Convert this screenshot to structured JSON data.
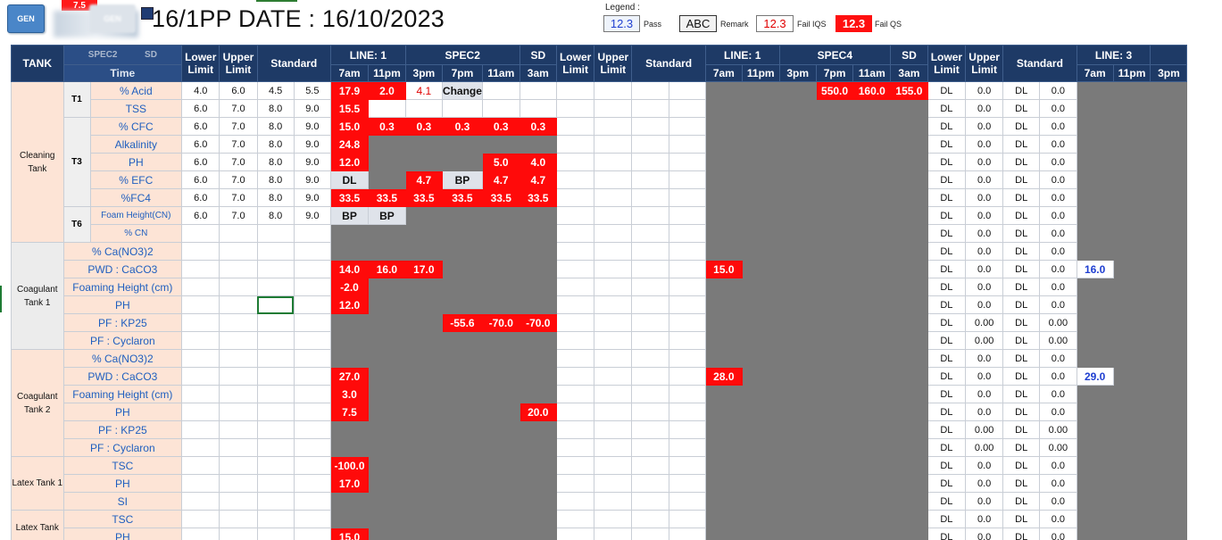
{
  "header": {
    "gen_button": "GEN",
    "gen_button_2": "GEN",
    "red_chip": "7.5",
    "title": "16/1PP DATE : 16/10/2023"
  },
  "legend": {
    "label": "Legend :",
    "pass_value": "12.3",
    "pass_text": "Pass",
    "remark_value": "ABC",
    "remark_text": "Remark",
    "failiqs_value": "12.3",
    "failiqs_text": "Fail IQS",
    "failqs_value": "12.3",
    "failqs_text": "Fail QS"
  },
  "colors": {
    "header_bg": "#1e3a66",
    "fail_qs": "#ff0a0a",
    "fail_iqs_text": "#e00000",
    "pass_text": "#1f3fd1",
    "tank_bg": "#fde4d6",
    "unused_cell": "#7a7a7a"
  },
  "table_header": {
    "tank": "TANK",
    "spec_blur": "SPEC2",
    "sd_blur": "SD",
    "time": "Time",
    "lower_limit": "Lower\nLimit",
    "upper_limit": "Upper\nLimit",
    "standard": "Standard",
    "group1": {
      "line": "LINE: 1",
      "spec": "SPEC2",
      "sd": "SD",
      "times": [
        "7am",
        "11pm",
        "3pm",
        "7pm",
        "11am",
        "3am"
      ]
    },
    "lower_limit_2": "Lower\nLimit",
    "upper_limit_2": "Upper\nLimit",
    "standard_2": "Standard",
    "group2": {
      "line": "LINE: 1",
      "spec": "SPEC4",
      "sd": "SD",
      "times": [
        "7am",
        "11pm",
        "3pm",
        "7pm",
        "11am",
        "3am"
      ]
    },
    "lower_limit_3": "Lower\nLimit",
    "upper_limit_3": "Upper\nLimit",
    "standard_3": "Standard",
    "group3": {
      "line": "LINE: 3",
      "times": [
        "7am",
        "11pm",
        "3pm"
      ]
    }
  },
  "tanks": {
    "cleaning": "Cleaning Tank",
    "coag1": "Coagulant Tank 1",
    "coag2": "Coagulant Tank 2",
    "latex1": "Latex Tank 1",
    "latex2": "Latex Tank"
  },
  "groups": {
    "t1": "T1",
    "t3": "T3",
    "t6": "T6"
  },
  "rows": {
    "acid": {
      "param": "% Acid",
      "lim": [
        "4.0",
        "6.0",
        "4.5",
        "5.5"
      ],
      "l1": [
        "17.9",
        "2.0",
        "4.1",
        "Change",
        "",
        ""
      ],
      "l2": [
        "",
        "",
        "",
        "550.0",
        "160.0",
        "155.0"
      ],
      "l3lim": [
        "DL",
        "0.0",
        "DL",
        "0.0"
      ]
    },
    "tss": {
      "param": "TSS",
      "lim": [
        "6.0",
        "7.0",
        "8.0",
        "9.0"
      ],
      "l1": [
        "15.5"
      ],
      "l3lim": [
        "DL",
        "0.0",
        "DL",
        "0.0"
      ]
    },
    "cfc": {
      "param": "% CFC",
      "lim": [
        "6.0",
        "7.0",
        "8.0",
        "9.0"
      ],
      "l1": [
        "15.0",
        "0.3",
        "0.3",
        "0.3",
        "0.3",
        "0.3"
      ],
      "l3lim": [
        "DL",
        "0.0",
        "DL",
        "0.0"
      ]
    },
    "alk": {
      "param": "Alkalinity",
      "lim": [
        "6.0",
        "7.0",
        "8.0",
        "9.0"
      ],
      "l1": [
        "24.8"
      ],
      "l3lim": [
        "DL",
        "0.0",
        "DL",
        "0.0"
      ]
    },
    "ph_t3": {
      "param": "PH",
      "lim": [
        "6.0",
        "7.0",
        "8.0",
        "9.0"
      ],
      "l1": [
        "12.0",
        "",
        "",
        "",
        "5.0",
        "4.0"
      ],
      "l3lim": [
        "DL",
        "0.0",
        "DL",
        "0.0"
      ]
    },
    "efc": {
      "param": "% EFC",
      "lim": [
        "6.0",
        "7.0",
        "8.0",
        "9.0"
      ],
      "l1": [
        "DL",
        "",
        "4.7",
        "BP",
        "4.7",
        "4.7"
      ],
      "l3lim": [
        "DL",
        "0.0",
        "DL",
        "0.0"
      ]
    },
    "fc4": {
      "param": "%FC4",
      "lim": [
        "6.0",
        "7.0",
        "8.0",
        "9.0"
      ],
      "l1": [
        "33.5",
        "33.5",
        "33.5",
        "33.5",
        "33.5",
        "33.5"
      ],
      "l3lim": [
        "DL",
        "0.0",
        "DL",
        "0.0"
      ]
    },
    "foam_cn": {
      "param": "Foam Height(CN)",
      "lim": [
        "6.0",
        "7.0",
        "8.0",
        "9.0"
      ],
      "l1": [
        "BP",
        "BP"
      ],
      "l3lim": [
        "DL",
        "0.0",
        "DL",
        "0.0"
      ]
    },
    "cn": {
      "param": "% CN",
      "l3lim": [
        "DL",
        "0.0",
        "DL",
        "0.0"
      ]
    },
    "c1_cano3": {
      "param": "% Ca(NO3)2",
      "l3lim": [
        "DL",
        "0.0",
        "DL",
        "0.0"
      ]
    },
    "c1_pwd": {
      "param": "PWD : CaCO3",
      "l1": [
        "14.0",
        "16.0",
        "17.0"
      ],
      "l2": [
        "15.0"
      ],
      "l3lim": [
        "DL",
        "0.0",
        "DL",
        "0.0"
      ],
      "l3": [
        "16.0"
      ]
    },
    "c1_foam": {
      "param": "Foaming Height (cm)",
      "l1": [
        "-2.0"
      ],
      "l3lim": [
        "DL",
        "0.0",
        "DL",
        "0.0"
      ]
    },
    "c1_ph": {
      "param": "PH",
      "l1": [
        "12.0"
      ],
      "l3lim": [
        "DL",
        "0.0",
        "DL",
        "0.0"
      ]
    },
    "c1_kp25": {
      "param": "PF : KP25",
      "l1": [
        "",
        "",
        "",
        "-55.6",
        "-70.0",
        "-70.0"
      ],
      "l3lim": [
        "DL",
        "0.00",
        "DL",
        "0.00"
      ]
    },
    "c1_cyc": {
      "param": "PF : Cyclaron",
      "l3lim": [
        "DL",
        "0.00",
        "DL",
        "0.00"
      ]
    },
    "c2_cano3": {
      "param": "% Ca(NO3)2",
      "l3lim": [
        "DL",
        "0.0",
        "DL",
        "0.0"
      ]
    },
    "c2_pwd": {
      "param": "PWD : CaCO3",
      "l1": [
        "27.0"
      ],
      "l2": [
        "28.0"
      ],
      "l3lim": [
        "DL",
        "0.0",
        "DL",
        "0.0"
      ],
      "l3": [
        "29.0"
      ]
    },
    "c2_foam": {
      "param": "Foaming Height (cm)",
      "l1": [
        "3.0"
      ],
      "l3lim": [
        "DL",
        "0.0",
        "DL",
        "0.0"
      ]
    },
    "c2_ph": {
      "param": "PH",
      "l1": [
        "7.5",
        "",
        "",
        "",
        "",
        "20.0"
      ],
      "l3lim": [
        "DL",
        "0.0",
        "DL",
        "0.0"
      ]
    },
    "c2_kp25": {
      "param": "PF : KP25",
      "l3lim": [
        "DL",
        "0.00",
        "DL",
        "0.00"
      ]
    },
    "c2_cyc": {
      "param": "PF : Cyclaron",
      "l3lim": [
        "DL",
        "0.00",
        "DL",
        "0.00"
      ]
    },
    "l1_tsc": {
      "param": "TSC",
      "l1": [
        "-100.0"
      ],
      "l3lim": [
        "DL",
        "0.0",
        "DL",
        "0.0"
      ]
    },
    "l1_ph": {
      "param": "PH",
      "l1": [
        "17.0"
      ],
      "l3lim": [
        "DL",
        "0.0",
        "DL",
        "0.0"
      ]
    },
    "l1_si": {
      "param": "SI",
      "l3lim": [
        "DL",
        "0.0",
        "DL",
        "0.0"
      ]
    },
    "l2_tsc": {
      "param": "TSC",
      "l3lim": [
        "DL",
        "0.0",
        "DL",
        "0.0"
      ]
    },
    "l2_ph": {
      "param": "PH",
      "l1": [
        "15.0"
      ],
      "l3lim": [
        "DL",
        "0.0",
        "DL",
        "0.0"
      ]
    }
  }
}
